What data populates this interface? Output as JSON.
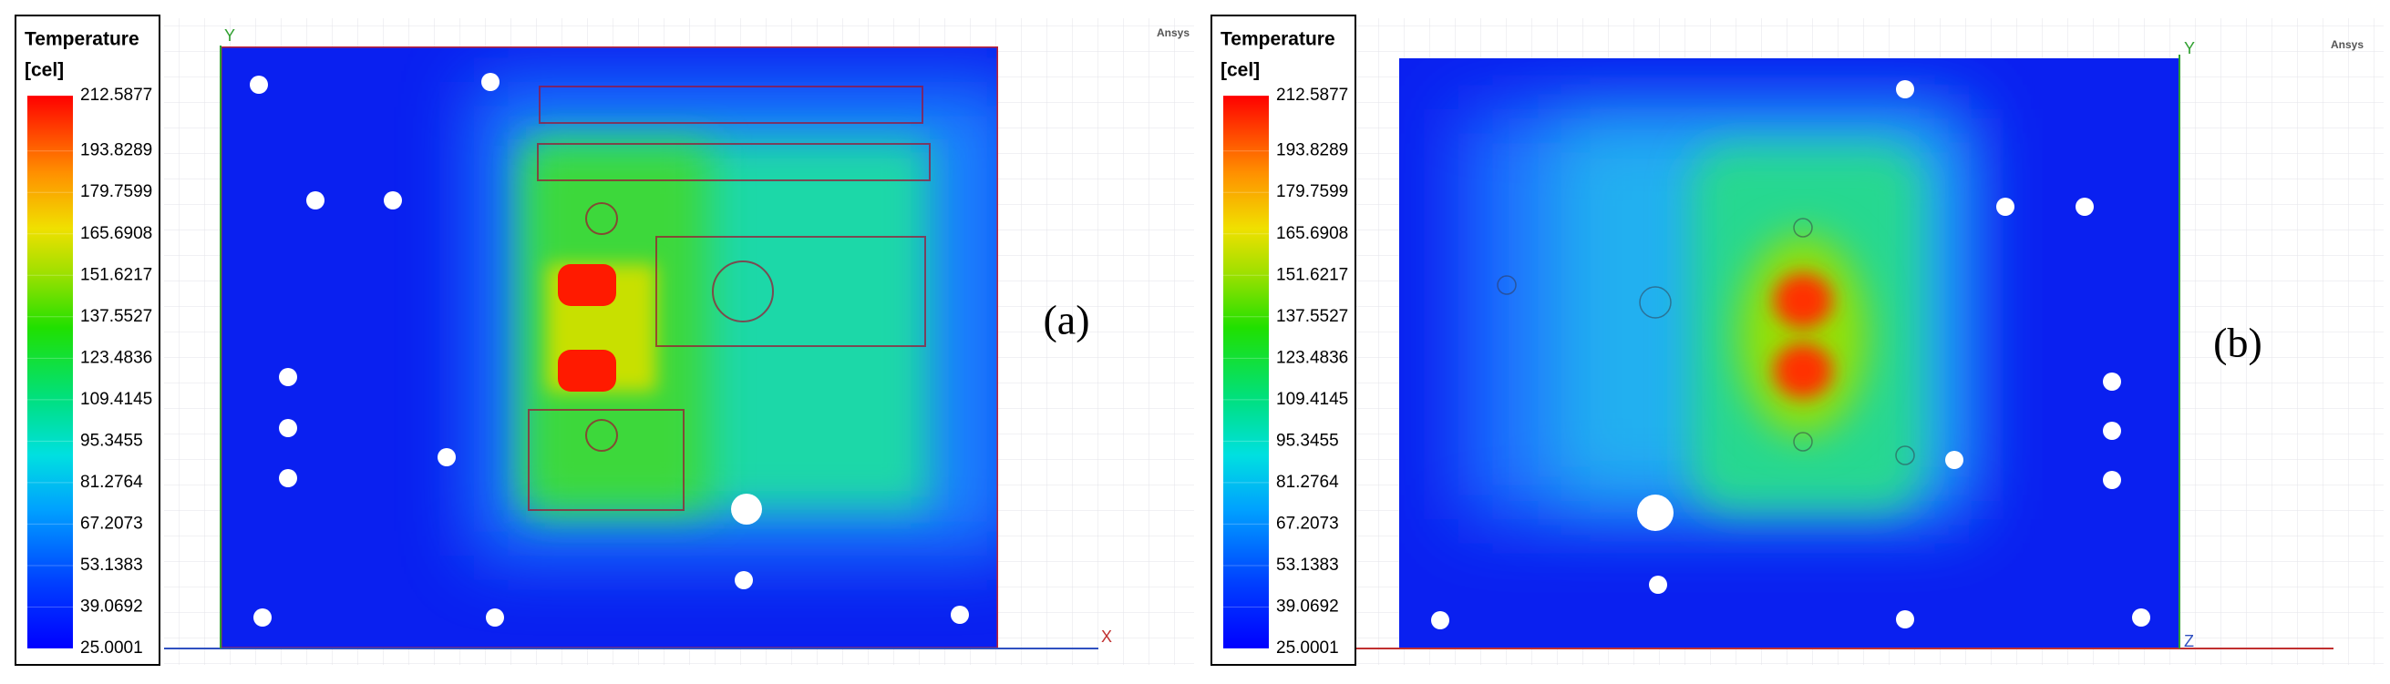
{
  "panels": [
    {
      "label": "(a)",
      "brand": "Ansys",
      "legend": {
        "title": "Temperature",
        "unit": "[cel]",
        "ticks": [
          212.5877,
          193.8289,
          179.7599,
          165.6908,
          151.6217,
          137.5527,
          123.4836,
          109.4145,
          95.3455,
          81.2764,
          67.2073,
          53.1383,
          39.0692,
          25.0001
        ]
      },
      "axes": {
        "vertical": "Y",
        "horizontal": "X"
      }
    },
    {
      "label": "(b)",
      "brand": "Ansys",
      "legend": {
        "title": "Temperature",
        "unit": "[cel]",
        "ticks": [
          212.5877,
          193.8289,
          179.7599,
          165.6908,
          151.6217,
          137.5527,
          123.4836,
          109.4145,
          95.3455,
          81.2764,
          67.2073,
          53.1383,
          39.0692,
          25.0001
        ]
      },
      "axes": {
        "vertical": "Y",
        "horizontal": "Z"
      }
    }
  ]
}
